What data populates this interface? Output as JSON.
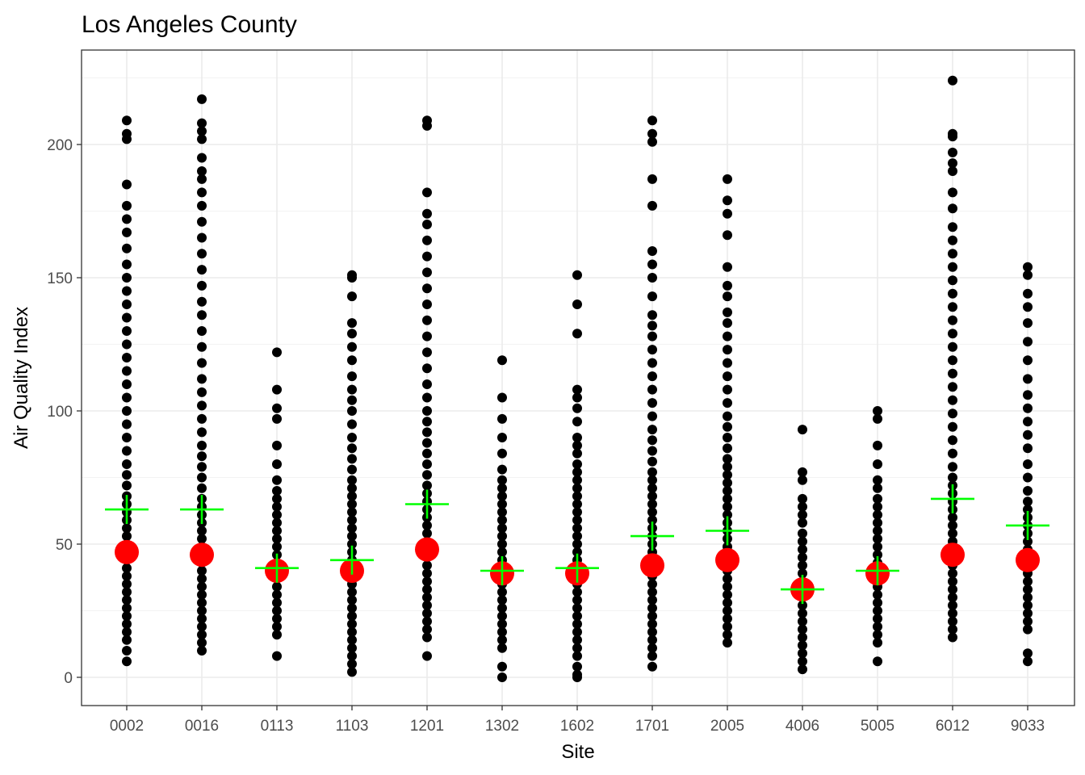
{
  "chart_data": {
    "type": "scatter",
    "title": "Los Angeles County",
    "xlabel": "Site",
    "ylabel": "Air Quality Index",
    "categories": [
      "0002",
      "0016",
      "0113",
      "1103",
      "1201",
      "1302",
      "1602",
      "1701",
      "2005",
      "4006",
      "5005",
      "6012",
      "9033"
    ],
    "yticks": [
      "0",
      "50",
      "100",
      "150",
      "200"
    ],
    "ylim": [
      -11,
      226
    ],
    "grid": true,
    "colors": {
      "points": "#000000",
      "median": "#ff0000",
      "mean": "#00ff00"
    },
    "series": [
      {
        "kind": "daily-aqi-points",
        "values": [
          [
            6,
            10,
            14,
            17,
            20,
            23,
            26,
            29,
            32,
            35,
            38,
            41,
            44,
            47,
            50,
            53,
            56,
            59,
            62,
            65,
            68,
            72,
            76,
            80,
            85,
            90,
            95,
            100,
            105,
            110,
            115,
            120,
            125,
            130,
            135,
            140,
            145,
            150,
            155,
            161,
            167,
            172,
            177,
            185,
            202,
            204,
            209
          ],
          [
            10,
            13,
            16,
            19,
            22,
            25,
            28,
            31,
            34,
            37,
            40,
            43,
            46,
            49,
            52,
            55,
            58,
            61,
            64,
            67,
            71,
            75,
            79,
            83,
            87,
            92,
            97,
            102,
            107,
            112,
            118,
            124,
            130,
            136,
            141,
            147,
            153,
            159,
            165,
            171,
            177,
            182,
            187,
            190,
            195,
            202,
            205,
            208,
            217
          ],
          [
            8,
            16,
            19,
            22,
            25,
            28,
            31,
            34,
            37,
            40,
            43,
            46,
            49,
            52,
            55,
            58,
            61,
            64,
            67,
            70,
            74,
            80,
            87,
            97,
            101,
            108,
            122
          ],
          [
            2,
            5,
            8,
            11,
            14,
            17,
            20,
            23,
            26,
            29,
            32,
            35,
            38,
            41,
            44,
            47,
            50,
            53,
            56,
            59,
            62,
            65,
            68,
            71,
            74,
            78,
            82,
            86,
            90,
            95,
            100,
            104,
            108,
            113,
            119,
            124,
            129,
            133,
            143,
            150,
            151
          ],
          [
            8,
            15,
            18,
            21,
            24,
            27,
            30,
            33,
            36,
            39,
            42,
            45,
            48,
            51,
            54,
            57,
            60,
            63,
            66,
            69,
            72,
            76,
            80,
            84,
            88,
            92,
            96,
            100,
            105,
            110,
            116,
            122,
            128,
            134,
            140,
            146,
            152,
            158,
            164,
            170,
            174,
            182,
            207,
            209
          ],
          [
            0,
            4,
            11,
            14,
            17,
            20,
            23,
            26,
            29,
            32,
            35,
            38,
            41,
            44,
            47,
            50,
            53,
            56,
            59,
            62,
            65,
            68,
            71,
            74,
            78,
            84,
            90,
            97,
            105,
            119
          ],
          [
            0,
            1,
            4,
            8,
            11,
            14,
            17,
            20,
            23,
            26,
            29,
            32,
            35,
            38,
            41,
            44,
            47,
            50,
            53,
            56,
            59,
            62,
            65,
            68,
            71,
            74,
            77,
            80,
            84,
            87,
            90,
            96,
            101,
            105,
            108,
            129,
            140,
            151
          ],
          [
            4,
            8,
            11,
            14,
            17,
            20,
            23,
            26,
            29,
            32,
            35,
            38,
            41,
            44,
            47,
            50,
            53,
            56,
            59,
            62,
            65,
            68,
            71,
            74,
            77,
            81,
            85,
            89,
            93,
            98,
            103,
            108,
            113,
            118,
            123,
            128,
            132,
            136,
            143,
            150,
            155,
            160,
            177,
            187,
            201,
            204,
            209
          ],
          [
            13,
            16,
            19,
            22,
            25,
            28,
            31,
            34,
            37,
            40,
            43,
            46,
            49,
            52,
            55,
            58,
            61,
            64,
            67,
            70,
            73,
            76,
            79,
            82,
            86,
            90,
            94,
            98,
            103,
            108,
            113,
            118,
            123,
            128,
            133,
            137,
            143,
            147,
            154,
            166,
            174,
            179,
            187
          ],
          [
            3,
            6,
            9,
            12,
            15,
            18,
            21,
            24,
            27,
            30,
            33,
            36,
            39,
            42,
            45,
            48,
            51,
            54,
            58,
            61,
            64,
            67,
            74,
            77,
            93
          ],
          [
            6,
            13,
            16,
            19,
            22,
            25,
            28,
            31,
            34,
            37,
            40,
            43,
            46,
            49,
            52,
            55,
            58,
            61,
            64,
            67,
            71,
            74,
            80,
            87,
            97,
            100
          ],
          [
            15,
            18,
            21,
            24,
            27,
            30,
            33,
            36,
            39,
            42,
            45,
            48,
            51,
            54,
            57,
            60,
            63,
            66,
            69,
            72,
            75,
            79,
            84,
            89,
            94,
            99,
            104,
            109,
            114,
            119,
            124,
            129,
            134,
            139,
            144,
            149,
            154,
            159,
            164,
            169,
            176,
            182,
            190,
            193,
            197,
            203,
            204,
            224
          ],
          [
            6,
            9,
            18,
            21,
            24,
            27,
            30,
            33,
            36,
            39,
            42,
            45,
            48,
            51,
            54,
            57,
            60,
            63,
            66,
            70,
            75,
            80,
            86,
            91,
            96,
            101,
            106,
            112,
            119,
            126,
            133,
            139,
            144,
            151,
            154
          ]
        ]
      },
      {
        "kind": "median",
        "values": [
          47,
          46,
          40,
          40,
          48,
          39,
          39,
          42,
          44,
          33,
          39,
          46,
          44
        ]
      },
      {
        "kind": "mean",
        "values": [
          63,
          63,
          41,
          44,
          65,
          40,
          41,
          53,
          55,
          33,
          40,
          67,
          57
        ]
      }
    ]
  }
}
